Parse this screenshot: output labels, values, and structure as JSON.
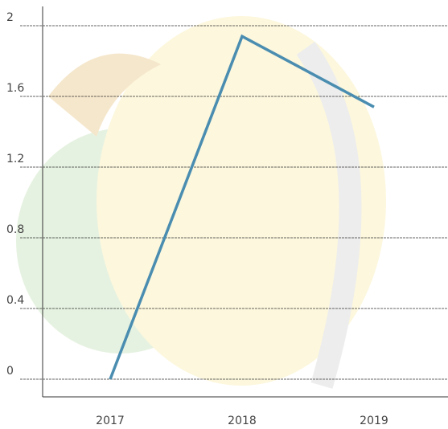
{
  "chart_data": {
    "type": "line",
    "categories": [
      "2017",
      "2018",
      "2019"
    ],
    "values": [
      0,
      1.94,
      1.54
    ],
    "color": "#4a8db0",
    "ylim": [
      -0.1,
      2.1
    ],
    "yticks": [
      0,
      0.4,
      0.8,
      1.2,
      1.6,
      2
    ],
    "grid": true
  }
}
